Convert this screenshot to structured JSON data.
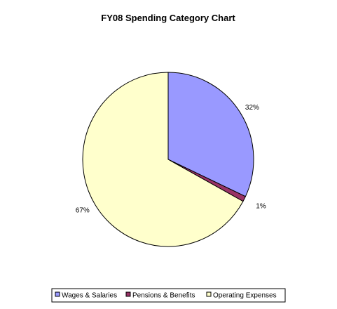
{
  "chart_data": {
    "type": "pie",
    "title": "FY08 Spending Category Chart",
    "categories": [
      "Wages & Salaries",
      "Pensions & Benefits",
      "Operating Expenses"
    ],
    "values": [
      32,
      1,
      67
    ],
    "labels": [
      "32%",
      "1%",
      "67%"
    ],
    "colors": [
      "#9999ff",
      "#993366",
      "#ffffcc"
    ],
    "legend_position": "bottom",
    "start_angle_deg": 90,
    "direction": "clockwise"
  }
}
